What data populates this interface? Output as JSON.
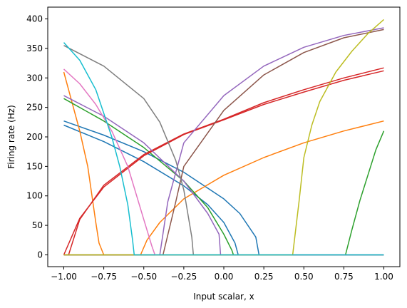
{
  "chart_data": {
    "type": "line",
    "title": "",
    "xlabel": "Input scalar, x",
    "ylabel": "Firing rate (Hz)",
    "xlim": [
      -1.1,
      1.1
    ],
    "ylim": [
      -20,
      420
    ],
    "grid": false,
    "legend": "none",
    "xticks": [
      -1.0,
      -0.75,
      -0.5,
      -0.25,
      0.0,
      0.25,
      0.5,
      0.75,
      1.0
    ],
    "xtick_labels": [
      "−1.00",
      "−0.75",
      "−0.50",
      "−0.25",
      "0.00",
      "0.25",
      "0.50",
      "0.75",
      "1.00"
    ],
    "yticks": [
      0,
      50,
      100,
      150,
      200,
      250,
      300,
      350,
      400
    ],
    "ytick_labels": [
      "0",
      "50",
      "100",
      "150",
      "200",
      "250",
      "300",
      "350",
      "400"
    ],
    "series": [
      {
        "color": "#1f77b4",
        "x": [
          -1.0,
          -0.75,
          -0.5,
          -0.25,
          0.0,
          0.1,
          0.2,
          0.22,
          0.25,
          0.5,
          0.75,
          1.0
        ],
        "y": [
          227,
          203,
          175,
          140,
          95,
          70,
          30,
          0,
          0,
          0,
          0,
          0
        ]
      },
      {
        "color": "#1f77b4",
        "x": [
          -1.0,
          -0.75,
          -0.5,
          -0.25,
          -0.1,
          0.0,
          0.07,
          0.09,
          0.25,
          0.5,
          0.75,
          1.0
        ],
        "y": [
          220,
          192,
          158,
          117,
          85,
          55,
          20,
          0,
          0,
          0,
          0,
          0
        ]
      },
      {
        "color": "#ff7f0e",
        "x": [
          -1.0,
          -0.95,
          -0.9,
          -0.85,
          -0.8,
          -0.78,
          -0.75,
          -0.5,
          -0.25,
          0.0,
          0.25,
          0.5,
          0.75,
          1.0
        ],
        "y": [
          310,
          260,
          210,
          150,
          55,
          20,
          0,
          0,
          0,
          0,
          0,
          0,
          0,
          0
        ]
      },
      {
        "color": "#ff7f0e",
        "x": [
          -1.0,
          -0.75,
          -0.52,
          -0.48,
          -0.4,
          -0.25,
          0.0,
          0.25,
          0.5,
          0.75,
          1.0
        ],
        "y": [
          0,
          0,
          0,
          25,
          55,
          95,
          135,
          165,
          190,
          210,
          227
        ]
      },
      {
        "color": "#2ca02c",
        "x": [
          -1.0,
          -0.75,
          -0.5,
          -0.25,
          -0.1,
          0.0,
          0.05,
          0.06,
          0.25,
          0.5,
          0.75,
          1.0
        ],
        "y": [
          265,
          227,
          182,
          125,
          80,
          35,
          8,
          0,
          0,
          0,
          0,
          0
        ]
      },
      {
        "color": "#2ca02c",
        "x": [
          -1.0,
          -0.5,
          0.0,
          0.5,
          0.76,
          0.8,
          0.85,
          0.9,
          0.95,
          1.0
        ],
        "y": [
          0,
          0,
          0,
          0,
          0,
          42,
          92,
          135,
          178,
          210
        ]
      },
      {
        "color": "#d62728",
        "x": [
          -1.0,
          -0.97,
          -0.9,
          -0.75,
          -0.5,
          -0.25,
          0.0,
          0.25,
          0.5,
          0.75,
          1.0
        ],
        "y": [
          0,
          0,
          60,
          118,
          170,
          205,
          230,
          258,
          280,
          300,
          317
        ]
      },
      {
        "color": "#d62728",
        "x": [
          -1.0,
          -0.94,
          -0.9,
          -0.75,
          -0.5,
          -0.25,
          0.0,
          0.25,
          0.5,
          0.75,
          1.0
        ],
        "y": [
          0,
          37,
          62,
          115,
          168,
          204,
          229,
          255,
          276,
          296,
          312
        ]
      },
      {
        "color": "#9467bd",
        "x": [
          -1.0,
          -0.75,
          -0.5,
          -0.25,
          -0.1,
          -0.03,
          -0.02,
          0.25,
          0.5,
          0.75,
          1.0
        ],
        "y": [
          270,
          235,
          190,
          125,
          70,
          35,
          0,
          0,
          0,
          0,
          0
        ]
      },
      {
        "color": "#9467bd",
        "x": [
          -1.0,
          -0.75,
          -0.5,
          -0.4,
          -0.35,
          -0.25,
          0.0,
          0.25,
          0.5,
          0.75,
          1.0
        ],
        "y": [
          0,
          0,
          0,
          0,
          90,
          190,
          270,
          320,
          352,
          372,
          385
        ]
      },
      {
        "color": "#8c564b",
        "x": [
          -1.0,
          -0.75,
          -0.5,
          -0.38,
          -0.3,
          -0.25,
          0.0,
          0.25,
          0.5,
          0.75,
          1.0
        ],
        "y": [
          0,
          0,
          0,
          0,
          90,
          150,
          245,
          305,
          343,
          368,
          382
        ]
      },
      {
        "color": "#e377c2",
        "x": [
          -1.0,
          -0.9,
          -0.8,
          -0.7,
          -0.6,
          -0.5,
          -0.45,
          -0.43,
          -0.25,
          0.0,
          0.5,
          1.0
        ],
        "y": [
          315,
          290,
          255,
          210,
          150,
          60,
          15,
          0,
          0,
          0,
          0,
          0
        ]
      },
      {
        "color": "#7f7f7f",
        "x": [
          -1.0,
          -0.75,
          -0.5,
          -0.4,
          -0.3,
          -0.25,
          -0.2,
          -0.19,
          0.0,
          0.5,
          1.0
        ],
        "y": [
          355,
          320,
          265,
          225,
          160,
          110,
          30,
          0,
          0,
          0,
          0
        ]
      },
      {
        "color": "#bcbd22",
        "x": [
          -1.0,
          -0.5,
          0.0,
          0.43,
          0.47,
          0.5,
          0.55,
          0.6,
          0.7,
          0.8,
          0.9,
          1.0
        ],
        "y": [
          0,
          0,
          0,
          0,
          90,
          165,
          220,
          260,
          310,
          345,
          375,
          399
        ]
      },
      {
        "color": "#17becf",
        "x": [
          -1.0,
          -0.9,
          -0.8,
          -0.7,
          -0.65,
          -0.6,
          -0.57,
          -0.56,
          -0.25,
          0.0,
          0.5,
          1.0
        ],
        "y": [
          360,
          330,
          280,
          200,
          150,
          85,
          25,
          0,
          0,
          0,
          0,
          0
        ]
      }
    ]
  }
}
